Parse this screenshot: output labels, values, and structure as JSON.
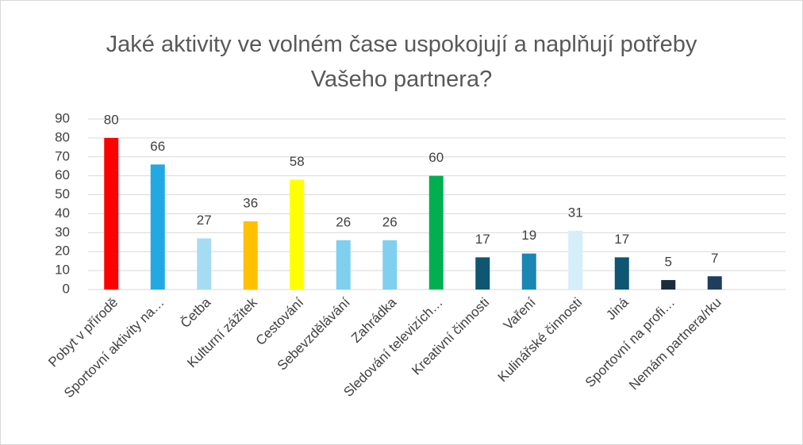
{
  "chart_data": {
    "type": "bar",
    "title": "Jaké aktivity ve volném čase uspokojují a naplňují potřeby Vašeho partnera?",
    "categories": [
      "Pobyt v přírodě",
      "Sportovní aktivity na…",
      "Četba",
      "Kulturní zážitek",
      "Cestování",
      "Sebevzdělávání",
      "Zahrádka",
      "Sledování televizích…",
      "Kreativní činnosti",
      "Vaření",
      "Kulinářské činnosti",
      "Jiná",
      "Sportovní na profi…",
      "Nemám partnera/rku"
    ],
    "values": [
      80,
      66,
      27,
      36,
      58,
      26,
      26,
      60,
      17,
      19,
      31,
      17,
      5,
      7
    ],
    "colors": [
      "#ff0000",
      "#23a9e1",
      "#a6dcf3",
      "#ffc000",
      "#ffff00",
      "#7fd0ee",
      "#7fd0ee",
      "#00b050",
      "#0e5672",
      "#1a86b4",
      "#d4eefa",
      "#0e5672",
      "#1b2c3c",
      "#1f3d5e"
    ],
    "ylim": [
      0,
      90
    ],
    "yticks": [
      0,
      10,
      20,
      30,
      40,
      50,
      60,
      70,
      80,
      90
    ],
    "grid": true
  }
}
